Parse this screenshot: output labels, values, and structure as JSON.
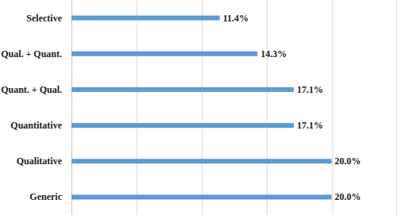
{
  "chart_data": {
    "type": "bar",
    "orientation": "horizontal",
    "categories": [
      "Selective",
      "Qual. + Quant.",
      "Quant. + Qual.",
      "Quantitative",
      "Qualitative",
      "Generic"
    ],
    "values": [
      11.4,
      14.3,
      17.1,
      17.1,
      20.0,
      20.0
    ],
    "value_labels": [
      "11.4%",
      "14.3%",
      "17.1%",
      "17.1%",
      "20.0%",
      "20.0%"
    ],
    "color": "#5b9bd5",
    "xlim": [
      0,
      25
    ],
    "xticks": [
      0,
      5,
      10,
      15,
      20,
      25
    ],
    "grid": true,
    "data_labels": true,
    "tick_labels": false
  }
}
